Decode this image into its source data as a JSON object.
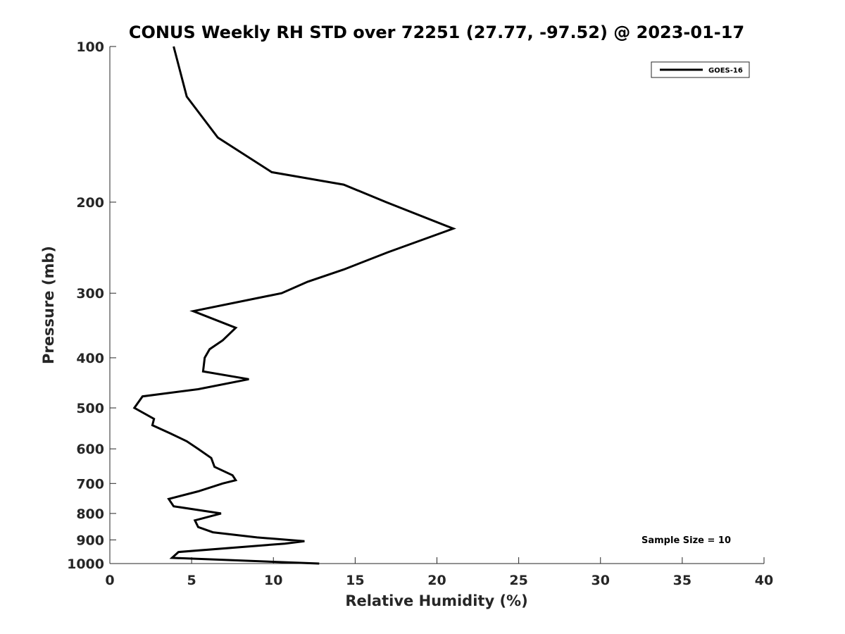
{
  "chart_data": {
    "type": "line",
    "title": "CONUS Weekly RH STD over 72251 (27.77, -97.52) @ 2023-01-17",
    "xlabel": "Relative Humidity (%)",
    "ylabel": "Pressure (mb)",
    "xlim": [
      0,
      40
    ],
    "ylim": [
      100,
      1000
    ],
    "y_scale": "log",
    "y_reversed": true,
    "x_ticks": [
      0,
      5,
      10,
      15,
      20,
      25,
      30,
      35,
      40
    ],
    "y_ticks": [
      100,
      200,
      300,
      400,
      500,
      600,
      700,
      800,
      900,
      1000
    ],
    "grid": false,
    "legend": {
      "placement": "top-right"
    },
    "annotation": "Sample Size = 10",
    "series": [
      {
        "name": "GOES-16",
        "color": "#000000",
        "points": [
          [
            3.9,
            100
          ],
          [
            4.7,
            125
          ],
          [
            6.6,
            150
          ],
          [
            9.9,
            175
          ],
          [
            14.3,
            185
          ],
          [
            16.9,
            200
          ],
          [
            21.0,
            225
          ],
          [
            17.0,
            250
          ],
          [
            14.3,
            270
          ],
          [
            12.1,
            285
          ],
          [
            10.5,
            300
          ],
          [
            5.1,
            325
          ],
          [
            7.7,
            350
          ],
          [
            6.9,
            370
          ],
          [
            6.1,
            385
          ],
          [
            5.8,
            400
          ],
          [
            5.7,
            425
          ],
          [
            8.5,
            440
          ],
          [
            5.4,
            460
          ],
          [
            2.0,
            475
          ],
          [
            1.5,
            500
          ],
          [
            2.7,
            525
          ],
          [
            2.6,
            540
          ],
          [
            3.7,
            560
          ],
          [
            4.7,
            580
          ],
          [
            5.4,
            600
          ],
          [
            6.2,
            625
          ],
          [
            6.4,
            650
          ],
          [
            7.5,
            675
          ],
          [
            7.7,
            690
          ],
          [
            6.9,
            700
          ],
          [
            5.4,
            725
          ],
          [
            3.6,
            750
          ],
          [
            3.9,
            775
          ],
          [
            6.8,
            800
          ],
          [
            5.2,
            825
          ],
          [
            5.4,
            850
          ],
          [
            6.3,
            870
          ],
          [
            9.0,
            890
          ],
          [
            11.9,
            905
          ],
          [
            10.7,
            915
          ],
          [
            4.2,
            950
          ],
          [
            3.8,
            975
          ],
          [
            12.8,
            1000
          ]
        ]
      }
    ]
  }
}
